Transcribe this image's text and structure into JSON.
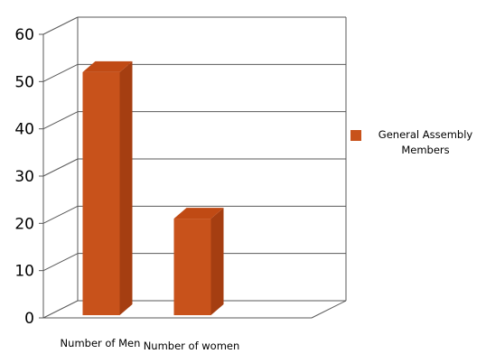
{
  "chart_data": {
    "type": "bar",
    "three_d": true,
    "categories": [
      "Number of Men",
      "Number of women"
    ],
    "series": [
      {
        "name": "General Assembly Members",
        "values": [
          52,
          21
        ],
        "color": "#c8521b"
      }
    ],
    "title": "",
    "xlabel": "",
    "ylabel": "",
    "ylim": [
      0,
      60
    ],
    "yticks": [
      0,
      10,
      20,
      30,
      40,
      50,
      60
    ],
    "grid": true,
    "legend_position": "right"
  }
}
